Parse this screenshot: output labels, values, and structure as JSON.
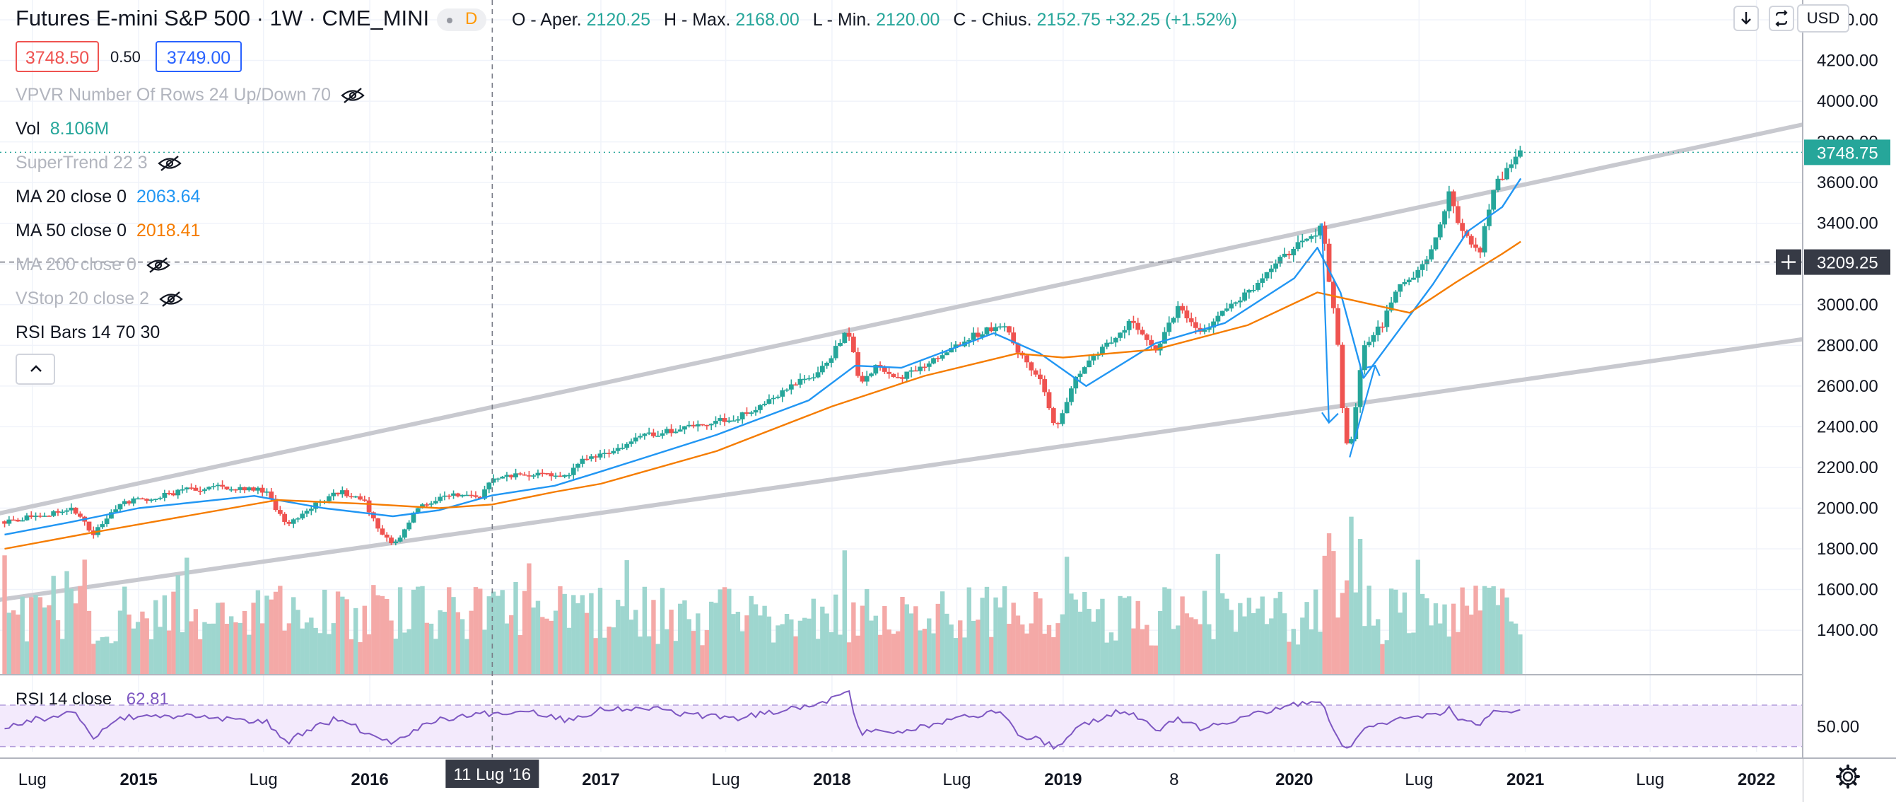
{
  "legend": {
    "title": "Futures E-mini S&P 500 · 1W · CME_MINI",
    "interval_badge": "D",
    "ohlc": {
      "o_label": "O - Aper.",
      "o_value": "2120.25",
      "h_label": "H - Max.",
      "h_value": "2168.00",
      "l_label": "L - Min.",
      "l_value": "2120.00",
      "c_label": "C - Chius.",
      "c_value": "2152.75",
      "change": "+32.25 (+1.52%)"
    },
    "bid": "3748.50",
    "spread": "0.50",
    "ask": "3749.00"
  },
  "indicators": [
    {
      "label": "VPVR Number Of Rows 24 Up/Down 70",
      "value": "",
      "hidden": true
    },
    {
      "label": "Vol",
      "value": "8.106M",
      "hidden": false,
      "value_color": "#26a69a"
    },
    {
      "label": "SuperTrend 22 3",
      "value": "",
      "hidden": true
    },
    {
      "label": "MA 20 close 0",
      "value": "2063.64",
      "hidden": false,
      "value_color": "#2196f3"
    },
    {
      "label": "MA 50 close 0",
      "value": "2018.41",
      "hidden": false,
      "value_color": "#f57c00"
    },
    {
      "label": "MA 200 close 0",
      "value": "",
      "hidden": true
    },
    {
      "label": "VStop 20 close 2",
      "value": "",
      "hidden": true
    },
    {
      "label": "RSI Bars 14 70 30",
      "value": "",
      "hidden": false
    }
  ],
  "rsi_legend": {
    "label": "RSI 14 close",
    "value": "62.81"
  },
  "buttons": {
    "scale_currency": "USD",
    "settings_icon": "gear-icon",
    "scroll_icon": "arrow-down-icon",
    "autoscale_icon": "autoscale-icon",
    "collapse_icon": "chevron-up-icon"
  },
  "colors": {
    "up": "#26a69a",
    "down": "#ef5350",
    "ma20": "#2196f3",
    "ma50": "#f57c00",
    "rsi": "#7e57c2",
    "trend": "#c8c9cf"
  },
  "chart_data": {
    "type": "candlestick",
    "price_axis": {
      "ticks": [
        "1400.00",
        "1600.00",
        "1800.00",
        "2000.00",
        "2200.00",
        "2400.00",
        "2600.00",
        "2800.00",
        "3000.00",
        "3200.00",
        "3400.00",
        "3600.00",
        "3800.00",
        "4000.00",
        "4200.00",
        "4400.00"
      ],
      "range": [
        1230,
        4480
      ],
      "last_price": "3748.75",
      "crosshair_price": "3209.25"
    },
    "time_axis": {
      "ticks": [
        {
          "label": "Lug",
          "t": 2014.54
        },
        {
          "label": "2015",
          "t": 2015.0
        },
        {
          "label": "Lug",
          "t": 2015.54
        },
        {
          "label": "2016",
          "t": 2016.0
        },
        {
          "label": "2017",
          "t": 2017.0
        },
        {
          "label": "Lug",
          "t": 2017.54
        },
        {
          "label": "2018",
          "t": 2018.0
        },
        {
          "label": "Lug",
          "t": 2018.54
        },
        {
          "label": "2019",
          "t": 2019.0
        },
        {
          "label": "8",
          "t": 2019.48
        },
        {
          "label": "2020",
          "t": 2020.0
        },
        {
          "label": "Lug",
          "t": 2020.54
        },
        {
          "label": "2021",
          "t": 2021.0
        },
        {
          "label": "Lug",
          "t": 2021.54
        },
        {
          "label": "2022",
          "t": 2022.0
        }
      ],
      "range": [
        2014.4,
        2022.2
      ],
      "crosshair_label": "11 Lug '16",
      "crosshair_t": 2016.53
    },
    "price_path": [
      [
        2014.42,
        1935
      ],
      [
        2014.55,
        1960
      ],
      [
        2014.72,
        1995
      ],
      [
        2014.8,
        1870
      ],
      [
        2014.92,
        2030
      ],
      [
        2015.05,
        2045
      ],
      [
        2015.2,
        2090
      ],
      [
        2015.38,
        2105
      ],
      [
        2015.55,
        2085
      ],
      [
        2015.64,
        1905
      ],
      [
        2015.75,
        2010
      ],
      [
        2015.87,
        2085
      ],
      [
        2015.98,
        2030
      ],
      [
        2016.04,
        1880
      ],
      [
        2016.11,
        1825
      ],
      [
        2016.2,
        1990
      ],
      [
        2016.3,
        2055
      ],
      [
        2016.4,
        2070
      ],
      [
        2016.48,
        2050
      ],
      [
        2016.53,
        2152
      ],
      [
        2016.7,
        2170
      ],
      [
        2016.85,
        2150
      ],
      [
        2016.92,
        2230
      ],
      [
        2017.0,
        2265
      ],
      [
        2017.2,
        2360
      ],
      [
        2017.4,
        2400
      ],
      [
        2017.6,
        2450
      ],
      [
        2017.8,
        2580
      ],
      [
        2017.95,
        2675
      ],
      [
        2018.07,
        2870
      ],
      [
        2018.12,
        2620
      ],
      [
        2018.2,
        2700
      ],
      [
        2018.3,
        2640
      ],
      [
        2018.45,
        2740
      ],
      [
        2018.6,
        2840
      ],
      [
        2018.74,
        2910
      ],
      [
        2018.8,
        2780
      ],
      [
        2018.9,
        2640
      ],
      [
        2018.97,
        2380
      ],
      [
        2019.05,
        2650
      ],
      [
        2019.2,
        2810
      ],
      [
        2019.3,
        2920
      ],
      [
        2019.4,
        2760
      ],
      [
        2019.5,
        2990
      ],
      [
        2019.6,
        2860
      ],
      [
        2019.7,
        2980
      ],
      [
        2019.85,
        3100
      ],
      [
        2019.95,
        3230
      ],
      [
        2020.07,
        3340
      ],
      [
        2020.12,
        3380
      ],
      [
        2020.16,
        3050
      ],
      [
        2020.19,
        2800
      ],
      [
        2020.22,
        2300
      ],
      [
        2020.25,
        2350
      ],
      [
        2020.3,
        2800
      ],
      [
        2020.38,
        2900
      ],
      [
        2020.45,
        3090
      ],
      [
        2020.55,
        3180
      ],
      [
        2020.62,
        3340
      ],
      [
        2020.67,
        3540
      ],
      [
        2020.72,
        3380
      ],
      [
        2020.8,
        3250
      ],
      [
        2020.86,
        3580
      ],
      [
        2020.93,
        3680
      ],
      [
        2020.98,
        3748
      ]
    ],
    "ma20_path": [
      [
        2014.42,
        1870
      ],
      [
        2014.7,
        1930
      ],
      [
        2015.0,
        2000
      ],
      [
        2015.5,
        2060
      ],
      [
        2015.8,
        2000
      ],
      [
        2016.1,
        1960
      ],
      [
        2016.3,
        1990
      ],
      [
        2016.53,
        2063
      ],
      [
        2016.8,
        2110
      ],
      [
        2017.0,
        2180
      ],
      [
        2017.5,
        2360
      ],
      [
        2017.9,
        2530
      ],
      [
        2018.1,
        2700
      ],
      [
        2018.3,
        2690
      ],
      [
        2018.7,
        2860
      ],
      [
        2018.9,
        2760
      ],
      [
        2019.1,
        2600
      ],
      [
        2019.4,
        2810
      ],
      [
        2019.7,
        2910
      ],
      [
        2020.0,
        3130
      ],
      [
        2020.1,
        3280
      ],
      [
        2020.2,
        3060
      ],
      [
        2020.3,
        2640
      ],
      [
        2020.45,
        2870
      ],
      [
        2020.6,
        3100
      ],
      [
        2020.75,
        3360
      ],
      [
        2020.9,
        3480
      ],
      [
        2020.98,
        3620
      ]
    ],
    "ma50_path": [
      [
        2014.42,
        1800
      ],
      [
        2014.8,
        1880
      ],
      [
        2015.2,
        1960
      ],
      [
        2015.6,
        2040
      ],
      [
        2016.0,
        2020
      ],
      [
        2016.3,
        2000
      ],
      [
        2016.53,
        2018
      ],
      [
        2016.8,
        2080
      ],
      [
        2017.0,
        2120
      ],
      [
        2017.5,
        2280
      ],
      [
        2018.0,
        2500
      ],
      [
        2018.4,
        2650
      ],
      [
        2018.8,
        2760
      ],
      [
        2019.0,
        2740
      ],
      [
        2019.4,
        2780
      ],
      [
        2019.8,
        2900
      ],
      [
        2020.1,
        3060
      ],
      [
        2020.3,
        3010
      ],
      [
        2020.5,
        2960
      ],
      [
        2020.7,
        3110
      ],
      [
        2020.9,
        3250
      ],
      [
        2020.98,
        3310
      ]
    ],
    "trend_lines": [
      {
        "from": [
          2014.4,
          1975
        ],
        "to": [
          2022.2,
          3885
        ]
      },
      {
        "from": [
          2014.4,
          1550
        ],
        "to": [
          2022.2,
          2830
        ]
      }
    ],
    "volume_range": [
      0,
      1
    ],
    "rsi": {
      "range": [
        25,
        85
      ],
      "upper_band": 70,
      "lower_band": 30,
      "ticks": [
        "50.00"
      ],
      "path": [
        [
          2014.42,
          48
        ],
        [
          2014.55,
          56
        ],
        [
          2014.72,
          62
        ],
        [
          2014.8,
          38
        ],
        [
          2014.92,
          58
        ],
        [
          2015.05,
          58
        ],
        [
          2015.2,
          60
        ],
        [
          2015.38,
          56
        ],
        [
          2015.55,
          54
        ],
        [
          2015.64,
          34
        ],
        [
          2015.75,
          48
        ],
        [
          2015.87,
          58
        ],
        [
          2015.98,
          44
        ],
        [
          2016.04,
          38
        ],
        [
          2016.11,
          34
        ],
        [
          2016.2,
          48
        ],
        [
          2016.3,
          56
        ],
        [
          2016.4,
          60
        ],
        [
          2016.53,
          62
        ],
        [
          2016.7,
          64
        ],
        [
          2016.85,
          56
        ],
        [
          2016.92,
          60
        ],
        [
          2017.0,
          66
        ],
        [
          2017.2,
          68
        ],
        [
          2017.4,
          60
        ],
        [
          2017.6,
          58
        ],
        [
          2017.8,
          66
        ],
        [
          2017.95,
          72
        ],
        [
          2018.07,
          84
        ],
        [
          2018.12,
          42
        ],
        [
          2018.2,
          46
        ],
        [
          2018.3,
          44
        ],
        [
          2018.45,
          52
        ],
        [
          2018.6,
          60
        ],
        [
          2018.74,
          64
        ],
        [
          2018.8,
          42
        ],
        [
          2018.9,
          36
        ],
        [
          2018.97,
          28
        ],
        [
          2019.05,
          46
        ],
        [
          2019.2,
          62
        ],
        [
          2019.3,
          64
        ],
        [
          2019.4,
          44
        ],
        [
          2019.5,
          58
        ],
        [
          2019.6,
          46
        ],
        [
          2019.7,
          54
        ],
        [
          2019.85,
          62
        ],
        [
          2019.95,
          68
        ],
        [
          2020.07,
          74
        ],
        [
          2020.12,
          76
        ],
        [
          2020.16,
          48
        ],
        [
          2020.19,
          36
        ],
        [
          2020.22,
          26
        ],
        [
          2020.25,
          30
        ],
        [
          2020.3,
          46
        ],
        [
          2020.38,
          52
        ],
        [
          2020.45,
          56
        ],
        [
          2020.55,
          58
        ],
        [
          2020.62,
          62
        ],
        [
          2020.67,
          66
        ],
        [
          2020.72,
          54
        ],
        [
          2020.8,
          50
        ],
        [
          2020.86,
          62
        ],
        [
          2020.93,
          62
        ],
        [
          2020.98,
          63
        ]
      ]
    }
  }
}
